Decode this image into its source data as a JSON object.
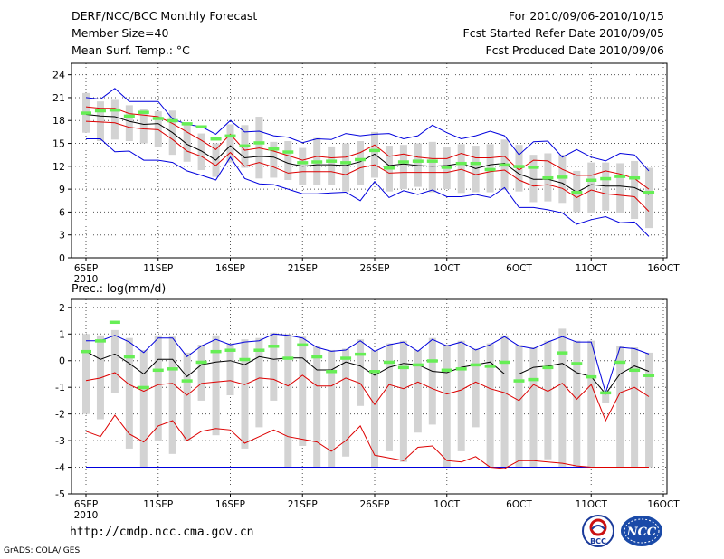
{
  "header": {
    "title": "DERF/NCC/BCC Monthly Forecast",
    "member_size": "Member Size=40",
    "variable": "Mean Surf. Temp.: °C",
    "for_period": "For 2010/09/06-2010/10/15",
    "fcst_started": "Fcst Started Refer Date 2010/09/05",
    "fcst_produced": "Fcst Produced Date 2010/09/06"
  },
  "footer": {
    "url": "http://cmdp.ncc.cma.gov.cn",
    "credit": "GrADS: COLA/IGES",
    "logo_bcc": "BCC",
    "logo_ncc": "NCC"
  },
  "colors": {
    "box": "#d3d3d3",
    "median_marker": "#66ee55",
    "envelope": "#0000dd",
    "inner_band": "#dd0000",
    "mean": "#000000"
  },
  "chart_data": [
    {
      "type": "box",
      "title": "Mean Surf. Temp.: °C",
      "ylim": [
        0,
        25.5
      ],
      "yticks": [
        0,
        3,
        6,
        9,
        12,
        15,
        18,
        21,
        24
      ],
      "xtick_labels": [
        "6SEP",
        "11SEP",
        "16SEP",
        "21SEP",
        "26SEP",
        "1OCT",
        "6OCT",
        "11OCT",
        "16OCT"
      ],
      "xtick_sublabel": "2010",
      "days": 40,
      "series": [
        {
          "name": "max",
          "values": [
            21.0,
            20.8,
            22.2,
            20.5,
            20.5,
            20.5,
            18.2,
            17.5,
            17.2,
            16.2,
            18.0,
            16.5,
            16.6,
            16.0,
            15.8,
            15.1,
            15.6,
            15.5,
            16.3,
            16.0,
            16.2,
            16.3,
            15.6,
            16.0,
            17.4,
            16.4,
            15.6,
            16.0,
            16.6,
            16.0,
            13.5,
            15.2,
            15.3,
            13.2,
            14.2,
            13.2,
            12.7,
            13.7,
            13.5,
            11.4
          ]
        },
        {
          "name": "q_high",
          "values": [
            19.8,
            19.6,
            19.6,
            18.9,
            18.7,
            18.5,
            17.6,
            16.5,
            15.4,
            14.2,
            16.2,
            14.1,
            14.4,
            14.0,
            13.4,
            12.8,
            13.3,
            13.1,
            13.2,
            13.8,
            14.8,
            13.3,
            13.6,
            13.2,
            13.0,
            13.0,
            13.7,
            13.1,
            13.1,
            13.3,
            11.5,
            12.8,
            12.7,
            11.6,
            10.8,
            10.8,
            11.4,
            11.0,
            10.4,
            9.0
          ]
        },
        {
          "name": "mean",
          "values": [
            18.8,
            18.6,
            18.5,
            17.9,
            17.5,
            17.6,
            16.4,
            14.9,
            14.0,
            12.8,
            14.7,
            13.1,
            13.3,
            13.2,
            12.4,
            12.0,
            12.2,
            12.2,
            12.1,
            12.6,
            13.6,
            12.1,
            12.3,
            12.1,
            12.0,
            12.1,
            12.4,
            11.7,
            12.2,
            12.4,
            11.0,
            10.3,
            10.3,
            9.8,
            8.6,
            9.6,
            9.4,
            9.4,
            9.2,
            8.3
          ]
        },
        {
          "name": "q_low",
          "values": [
            17.9,
            17.8,
            17.7,
            17.1,
            16.9,
            16.8,
            15.5,
            14.0,
            13.3,
            12.1,
            13.8,
            12.0,
            12.5,
            11.9,
            11.1,
            11.3,
            11.3,
            11.3,
            10.9,
            11.8,
            12.2,
            11.1,
            11.2,
            11.2,
            11.2,
            11.2,
            11.6,
            10.9,
            11.3,
            11.5,
            10.2,
            9.4,
            9.6,
            9.1,
            7.9,
            8.9,
            8.4,
            8.2,
            8.0,
            6.1
          ]
        },
        {
          "name": "min",
          "values": [
            15.6,
            15.6,
            13.9,
            14.0,
            12.8,
            12.8,
            12.5,
            11.4,
            10.8,
            10.2,
            13.2,
            10.4,
            9.7,
            9.6,
            9.0,
            8.4,
            8.4,
            8.5,
            8.6,
            7.5,
            10.0,
            7.9,
            8.8,
            8.3,
            8.9,
            8.0,
            8.0,
            8.3,
            7.9,
            9.2,
            6.6,
            6.6,
            6.3,
            5.9,
            4.4,
            5.0,
            5.4,
            4.6,
            4.7,
            2.8
          ]
        },
        {
          "name": "box_top",
          "values": [
            21.6,
            20.5,
            20.7,
            20.0,
            19.5,
            19.2,
            19.3,
            17.5,
            16.3,
            15.0,
            17.5,
            17.4,
            18.5,
            15.2,
            15.3,
            14.4,
            15.7,
            14.6,
            15.0,
            15.3,
            16.5,
            14.7,
            14.8,
            15.0,
            15.2,
            14.5,
            14.9,
            14.7,
            14.9,
            15.5,
            14.8,
            13.5,
            13.7,
            13.5,
            11.4,
            12.5,
            12.5,
            12.4,
            12.7,
            11.8
          ]
        },
        {
          "name": "box_bottom",
          "values": [
            16.4,
            15.3,
            15.5,
            15.3,
            15.0,
            14.5,
            13.5,
            12.6,
            11.5,
            10.6,
            12.5,
            11.8,
            10.4,
            10.5,
            10.2,
            9.6,
            9.5,
            9.5,
            8.7,
            9.5,
            10.5,
            8.7,
            9.0,
            9.3,
            8.6,
            9.0,
            8.5,
            8.6,
            8.6,
            8.9,
            8.7,
            7.3,
            7.4,
            7.2,
            6.0,
            5.9,
            6.2,
            5.9,
            5.1,
            3.9
          ]
        },
        {
          "name": "median",
          "values": [
            19.0,
            19.3,
            19.4,
            18.6,
            19.1,
            18.3,
            18.0,
            17.6,
            17.2,
            15.6,
            16.0,
            14.7,
            15.1,
            14.3,
            13.9,
            12.5,
            12.6,
            12.7,
            12.5,
            12.9,
            14.1,
            11.8,
            12.6,
            12.7,
            12.7,
            11.9,
            12.4,
            12.4,
            11.6,
            12.2,
            12.0,
            11.9,
            10.5,
            10.6,
            8.6,
            10.2,
            10.4,
            10.7,
            10.5,
            8.6
          ]
        }
      ]
    },
    {
      "type": "box",
      "title": "Prec.: log(mm/d)",
      "ylim": [
        -5,
        2.3
      ],
      "yticks": [
        -5,
        -4,
        -3,
        -2,
        -1,
        0,
        1,
        2
      ],
      "xtick_labels": [
        "6SEP",
        "11SEP",
        "16SEP",
        "21SEP",
        "26SEP",
        "1OCT",
        "6OCT",
        "11OCT",
        "16OCT"
      ],
      "xtick_sublabel": "2010",
      "days": 40,
      "series": [
        {
          "name": "max",
          "values": [
            0.75,
            0.75,
            0.95,
            0.7,
            0.3,
            0.85,
            0.85,
            0.15,
            0.55,
            0.8,
            0.6,
            0.7,
            0.75,
            1.0,
            0.95,
            0.85,
            0.5,
            0.35,
            0.4,
            0.75,
            0.35,
            0.6,
            0.7,
            0.35,
            0.8,
            0.55,
            0.7,
            0.4,
            0.6,
            0.9,
            0.55,
            0.45,
            0.7,
            0.9,
            0.7,
            0.7,
            -1.2,
            0.5,
            0.45,
            0.25
          ]
        },
        {
          "name": "mean",
          "values": [
            0.35,
            0.05,
            0.25,
            -0.1,
            -0.5,
            0.05,
            0.05,
            -0.6,
            -0.15,
            -0.05,
            0.0,
            -0.15,
            0.15,
            0.05,
            0.1,
            0.1,
            -0.35,
            -0.35,
            -0.05,
            -0.2,
            -0.55,
            -0.25,
            -0.1,
            -0.15,
            -0.4,
            -0.45,
            -0.25,
            -0.15,
            -0.05,
            -0.5,
            -0.5,
            -0.25,
            -0.2,
            -0.1,
            -0.45,
            -0.6,
            -1.25,
            -0.5,
            -0.2,
            -0.4
          ]
        },
        {
          "name": "q_low",
          "values": [
            -0.75,
            -0.65,
            -0.45,
            -0.9,
            -1.15,
            -0.9,
            -0.85,
            -1.3,
            -0.85,
            -0.8,
            -0.75,
            -0.9,
            -0.65,
            -0.7,
            -0.95,
            -0.55,
            -0.95,
            -0.95,
            -0.65,
            -0.85,
            -1.65,
            -0.9,
            -1.05,
            -0.8,
            -1.05,
            -1.25,
            -1.1,
            -0.8,
            -1.05,
            -1.2,
            -1.5,
            -0.9,
            -1.15,
            -0.85,
            -1.45,
            -0.9,
            -2.25,
            -1.2,
            -1.0,
            -1.35
          ]
        },
        {
          "name": "q_min",
          "values": [
            -2.65,
            -2.85,
            -2.05,
            -2.75,
            -3.05,
            -2.45,
            -2.25,
            -3.0,
            -2.65,
            -2.55,
            -2.6,
            -3.1,
            -2.85,
            -2.6,
            -2.85,
            -2.95,
            -3.05,
            -3.4,
            -3.0,
            -2.45,
            -3.55,
            -3.65,
            -3.75,
            -3.25,
            -3.2,
            -3.75,
            -3.8,
            -3.6,
            -4.0,
            -4.05,
            -3.75,
            -3.75,
            -3.8,
            -3.85,
            -3.95,
            -4.0,
            -4.0,
            -4.0,
            -4.0,
            -4.0
          ]
        },
        {
          "name": "floor",
          "values": [
            -4.0,
            -4.0,
            -4.0,
            -4.0,
            -4.0,
            -4.0,
            -4.0,
            -4.0,
            -4.0,
            -4.0,
            -4.0,
            -4.0,
            -4.0,
            -4.0,
            -4.0,
            -4.0,
            -4.0,
            -4.0,
            -4.0,
            -4.0,
            -4.0,
            -4.0,
            -4.0,
            -4.0,
            -4.0,
            -4.0,
            -4.0,
            -4.0,
            -4.0,
            -4.0,
            -4.0,
            -4.0,
            -4.0,
            -4.0,
            -4.0,
            -4.0,
            -4.0,
            -4.0,
            -4.0,
            -4.0
          ]
        },
        {
          "name": "box_top",
          "values": [
            1.0,
            0.95,
            1.15,
            0.85,
            0.4,
            0.95,
            0.9,
            0.3,
            0.6,
            0.95,
            0.65,
            0.8,
            0.85,
            1.05,
            1.0,
            0.9,
            0.55,
            0.4,
            0.45,
            0.8,
            0.4,
            0.65,
            0.75,
            0.4,
            0.85,
            0.6,
            0.75,
            0.45,
            0.65,
            0.95,
            0.6,
            0.5,
            0.75,
            1.2,
            0.75,
            0.75,
            -1.1,
            0.55,
            0.5,
            0.3
          ]
        },
        {
          "name": "box_bottom",
          "values": [
            -2.0,
            -2.2,
            -1.2,
            -3.3,
            -4.0,
            -3.0,
            -3.5,
            -3.0,
            -1.5,
            -2.8,
            -1.3,
            -3.3,
            -2.5,
            -1.5,
            -4.0,
            -3.2,
            -4.0,
            -4.0,
            -3.6,
            -1.7,
            -4.0,
            -3.4,
            -3.8,
            -2.7,
            -2.4,
            -4.0,
            -3.4,
            -2.5,
            -4.0,
            -4.0,
            -4.0,
            -4.0,
            -3.7,
            -4.0,
            -4.0,
            -4.0,
            -1.6,
            -4.0,
            -4.0,
            -4.0
          ]
        },
        {
          "name": "median",
          "values": [
            0.35,
            0.75,
            1.45,
            0.15,
            -1.0,
            -0.35,
            -0.3,
            -0.75,
            -0.05,
            0.35,
            0.4,
            0.05,
            0.4,
            0.55,
            0.1,
            0.6,
            0.15,
            -0.4,
            0.1,
            0.25,
            -0.4,
            -0.05,
            -0.25,
            -0.15,
            0.0,
            -0.35,
            -0.3,
            -0.15,
            -0.2,
            -0.05,
            -0.75,
            -0.7,
            -0.25,
            0.3,
            -0.1,
            -0.6,
            -1.2,
            -0.05,
            -0.35,
            -0.55
          ]
        }
      ]
    }
  ]
}
